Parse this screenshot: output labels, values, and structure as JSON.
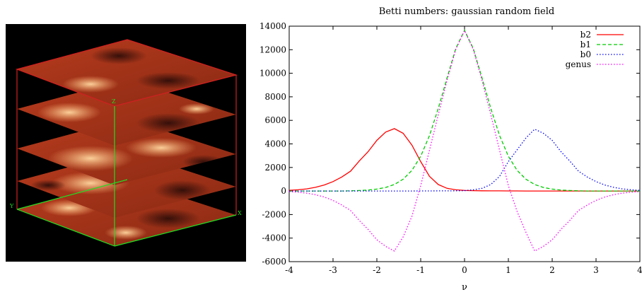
{
  "visualization": {
    "axis_labels": [
      "Y",
      "X",
      "Z"
    ],
    "colors": {
      "background": "#000000",
      "bounding_box": "#d02020",
      "axis_lines": "#22dd22",
      "field_dark": "#2a0c08",
      "field_mid": "#b03a1c",
      "field_bright": "#ffc88a"
    },
    "slices": 5
  },
  "chart_data": {
    "type": "line",
    "title": "Betti numbers: gaussian random field",
    "xlabel": "ν",
    "ylabel": "",
    "xlim": [
      -4,
      4
    ],
    "ylim": [
      -6000,
      14000
    ],
    "xticks": [
      "-4",
      "-3",
      "-2",
      "-1",
      "0",
      "1",
      "2",
      "3",
      "4"
    ],
    "yticks": [
      "-6000",
      "-4000",
      "-2000",
      "0",
      "2000",
      "4000",
      "6000",
      "8000",
      "10000",
      "12000",
      "14000"
    ],
    "grid": false,
    "legend_position": "top-right",
    "x": [
      -4,
      -3.8,
      -3.6,
      -3.4,
      -3.2,
      -3,
      -2.8,
      -2.6,
      -2.4,
      -2.2,
      -2,
      -1.8,
      -1.6,
      -1.4,
      -1.2,
      -1,
      -0.8,
      -0.6,
      -0.4,
      -0.2,
      0,
      0.2,
      0.4,
      0.6,
      0.8,
      1,
      1.2,
      1.4,
      1.6,
      1.8,
      2,
      2.2,
      2.4,
      2.6,
      2.8,
      3,
      3.2,
      3.4,
      3.6,
      3.8,
      4
    ],
    "series": [
      {
        "name": "b2",
        "color": "#ff0000",
        "dash": "solid",
        "values": [
          55,
          100,
          180,
          310,
          510,
          800,
          1190,
          1680,
          2550,
          3340,
          4300,
          5000,
          5300,
          4900,
          3900,
          2500,
          1250,
          550,
          230,
          100,
          50,
          30,
          20,
          10,
          10,
          5,
          5,
          0,
          0,
          0,
          0,
          0,
          0,
          0,
          0,
          0,
          0,
          0,
          0,
          0,
          0
        ]
      },
      {
        "name": "b1",
        "color": "#00cc00",
        "dash": "dashed",
        "values": [
          0,
          0,
          0,
          0,
          0,
          0,
          0,
          20,
          40,
          80,
          160,
          300,
          550,
          1000,
          1750,
          2950,
          4700,
          7000,
          9600,
          12100,
          13650,
          12100,
          9600,
          7000,
          4700,
          2950,
          1750,
          1000,
          550,
          300,
          160,
          80,
          40,
          20,
          0,
          0,
          0,
          0,
          0,
          0,
          0
        ]
      },
      {
        "name": "b0",
        "color": "#0000ff",
        "dash": "dotted",
        "values": [
          0,
          0,
          0,
          0,
          0,
          0,
          0,
          0,
          0,
          0,
          0,
          0,
          0,
          0,
          0,
          5,
          5,
          10,
          10,
          20,
          30,
          100,
          230,
          550,
          1250,
          2500,
          3500,
          4500,
          5250,
          4900,
          4300,
          3340,
          2550,
          1680,
          1190,
          800,
          510,
          310,
          180,
          100,
          55
        ]
      },
      {
        "name": "genus",
        "color": "#ff00ff",
        "dash": "dotted",
        "values": [
          -55,
          -100,
          -180,
          -310,
          -510,
          -800,
          -1190,
          -1660,
          -2510,
          -3260,
          -4140,
          -4700,
          -5100,
          -3900,
          -2150,
          455,
          3455,
          6460,
          9380,
          12020,
          13620,
          12020,
          9380,
          6460,
          3455,
          455,
          -1750,
          -3500,
          -5100,
          -4700,
          -4140,
          -3260,
          -2510,
          -1660,
          -1190,
          -800,
          -510,
          -310,
          -180,
          -100,
          -55
        ]
      }
    ]
  }
}
